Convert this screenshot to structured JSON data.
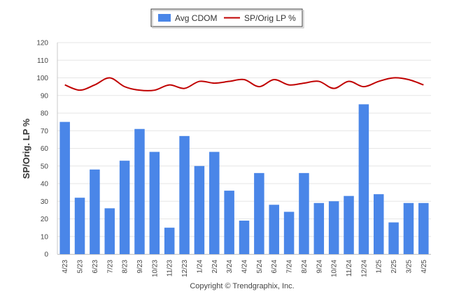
{
  "chart_data": {
    "type": "bar",
    "ylabel": "SP/Orig. LP %",
    "ylim": [
      0,
      120
    ],
    "yticks": [
      0,
      10,
      20,
      30,
      40,
      50,
      60,
      70,
      80,
      90,
      100,
      110,
      120
    ],
    "grid": true,
    "legend_position": "top-center",
    "categories": [
      "4/23",
      "5/23",
      "6/23",
      "7/23",
      "8/23",
      "9/23",
      "10/23",
      "11/23",
      "12/23",
      "1/24",
      "2/24",
      "3/24",
      "4/24",
      "5/24",
      "6/24",
      "7/24",
      "8/24",
      "9/24",
      "10/24",
      "11/24",
      "12/24",
      "1/25",
      "2/25",
      "3/25",
      "4/25"
    ],
    "series": [
      {
        "name": "Avg CDOM",
        "type": "bar",
        "color": "#4a86e8",
        "values": [
          75,
          32,
          48,
          26,
          53,
          71,
          58,
          15,
          67,
          50,
          58,
          36,
          19,
          46,
          28,
          24,
          46,
          29,
          30,
          33,
          85,
          34,
          18,
          29,
          29
        ]
      },
      {
        "name": "SP/Orig LP %",
        "type": "line",
        "color": "#c00000",
        "values": [
          96,
          93,
          96,
          100,
          95,
          93,
          93,
          96,
          94,
          98,
          97,
          98,
          99,
          95,
          99,
          96,
          97,
          98,
          94,
          98,
          95,
          98,
          100,
          99,
          96
        ]
      }
    ]
  },
  "footer": {
    "copyright": "Copyright © Trendgraphix, Inc."
  }
}
